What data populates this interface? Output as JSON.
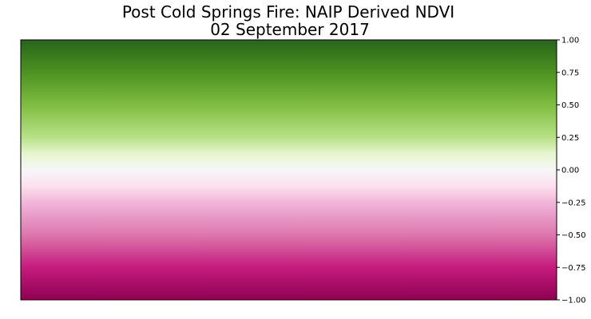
{
  "chart_data": {
    "type": "heatmap",
    "title": "Post Cold Springs Fire: NAIP Derived NDVI",
    "subtitle": "02 September 2017",
    "colorbar": {
      "position": "right",
      "range": [
        -1.0,
        1.0
      ],
      "ticks": [
        "1.00",
        "0.75",
        "0.50",
        "0.25",
        "0.00",
        "−0.25",
        "−0.50",
        "−0.75",
        "−1.00"
      ],
      "tick_values": [
        1.0,
        0.75,
        0.5,
        0.25,
        0.0,
        -0.25,
        -0.5,
        -0.75,
        -1.0
      ],
      "colormap": "PiYG",
      "colormap_stops": [
        {
          "value": 1.0,
          "color": "#276419"
        },
        {
          "value": 0.75,
          "color": "#4d9221"
        },
        {
          "value": 0.5,
          "color": "#7fbc41"
        },
        {
          "value": 0.25,
          "color": "#b8e186"
        },
        {
          "value": 0.125,
          "color": "#e6f5d0"
        },
        {
          "value": 0.0,
          "color": "#f7f7f7"
        },
        {
          "value": -0.125,
          "color": "#fde0ef"
        },
        {
          "value": -0.25,
          "color": "#f1b6da"
        },
        {
          "value": -0.5,
          "color": "#de77ae"
        },
        {
          "value": -0.75,
          "color": "#c51b7d"
        },
        {
          "value": -1.0,
          "color": "#8e0152"
        }
      ]
    },
    "grid": false
  }
}
